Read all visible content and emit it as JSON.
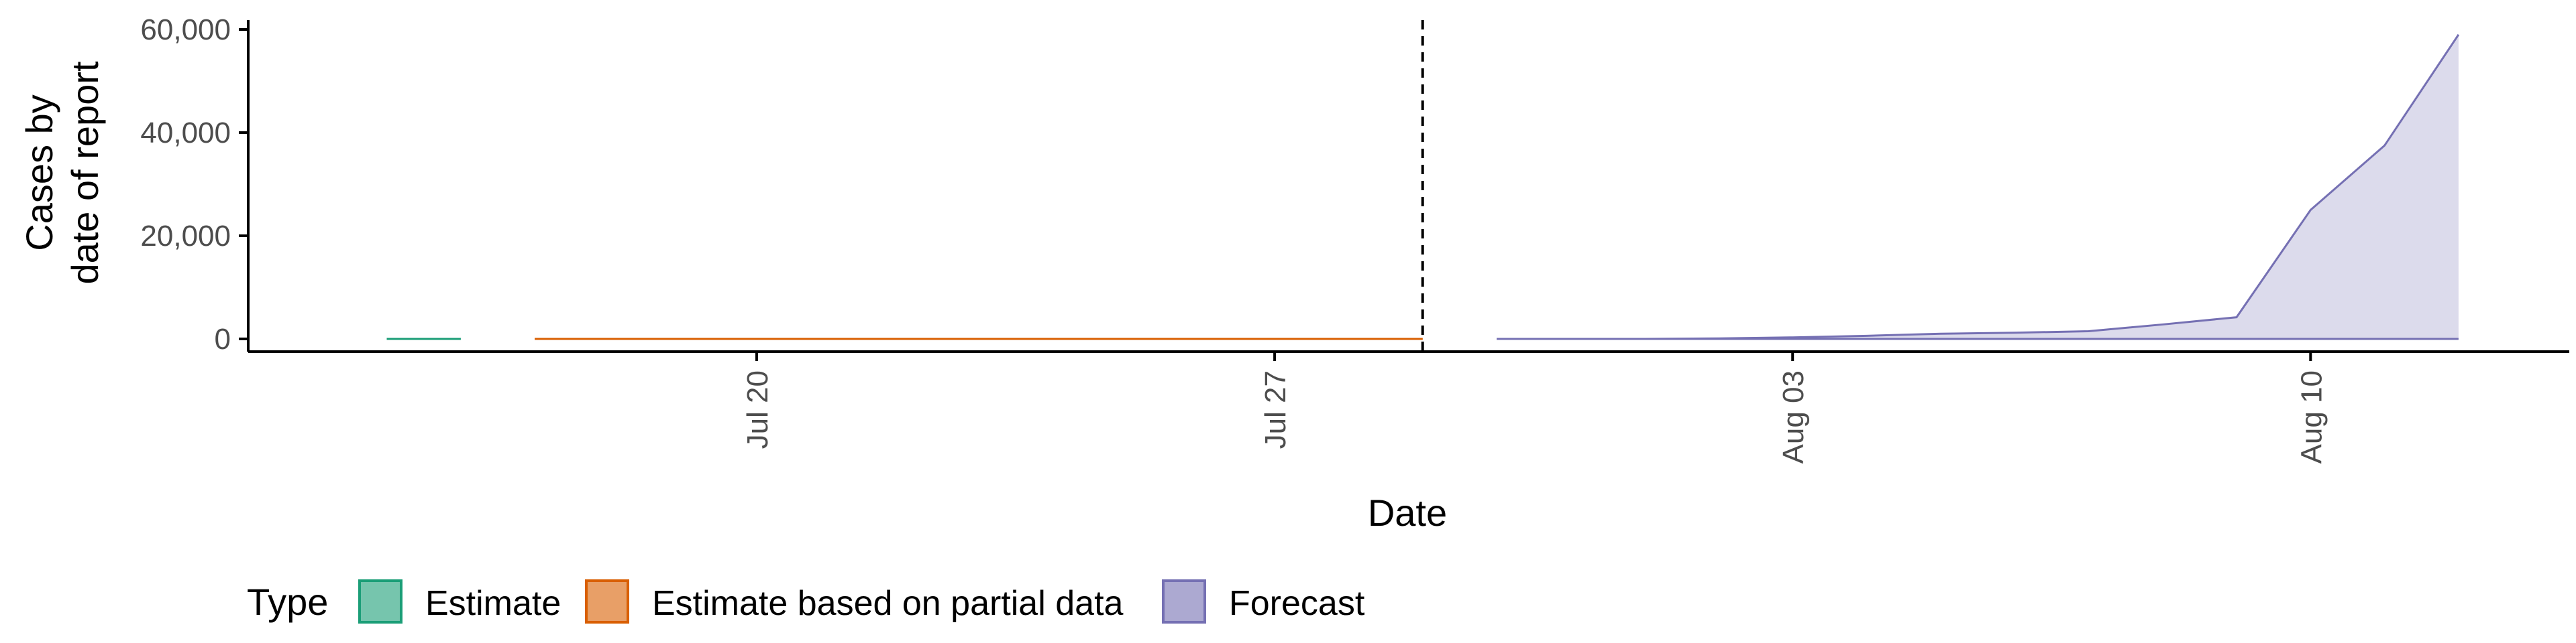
{
  "chart_data": {
    "type": "area",
    "xlabel": "Date",
    "ylabel_lines": [
      "Cases by",
      "date of report"
    ],
    "ylim": [
      0,
      60000
    ],
    "y_ticks": [
      0,
      20000,
      40000,
      60000
    ],
    "y_tick_labels": [
      "0",
      "20,000",
      "40,000",
      "60,000"
    ],
    "x_ticks": [
      "2020-07-20",
      "2020-07-27",
      "2020-08-03",
      "2020-08-10"
    ],
    "x_tick_labels": [
      "Jul 20",
      "Jul 27",
      "Aug 03",
      "Aug 10"
    ],
    "xlim": [
      "2020-07-13",
      "2020-08-14"
    ],
    "vline_date": "2020-07-29",
    "grid": false,
    "legend": {
      "title": "Type",
      "placement": "bottom-left",
      "entries": [
        "Estimate",
        "Estimate based on partial data",
        "Forecast"
      ]
    },
    "series": [
      {
        "name": "Estimate",
        "color": "#1b9e77",
        "x": [
          "2020-07-15",
          "2020-07-16"
        ],
        "y": [
          0,
          0
        ]
      },
      {
        "name": "Estimate based on partial data",
        "color": "#d95f02",
        "x": [
          "2020-07-17",
          "2020-07-18",
          "2020-07-19",
          "2020-07-20",
          "2020-07-21",
          "2020-07-22",
          "2020-07-23",
          "2020-07-24",
          "2020-07-25",
          "2020-07-26",
          "2020-07-27",
          "2020-07-28",
          "2020-07-29"
        ],
        "y": [
          0,
          0,
          0,
          0,
          0,
          0,
          0,
          0,
          0,
          0,
          0,
          0,
          0
        ]
      },
      {
        "name": "Forecast",
        "color": "#7570b3",
        "x": [
          "2020-07-30",
          "2020-07-31",
          "2020-08-01",
          "2020-08-02",
          "2020-08-03",
          "2020-08-04",
          "2020-08-05",
          "2020-08-06",
          "2020-08-07",
          "2020-08-08",
          "2020-08-09",
          "2020-08-10",
          "2020-08-11",
          "2020-08-12"
        ],
        "y": [
          0,
          0,
          0,
          100,
          300,
          600,
          1000,
          1200,
          1500,
          2800,
          4200,
          25000,
          37500,
          59000
        ]
      }
    ]
  }
}
